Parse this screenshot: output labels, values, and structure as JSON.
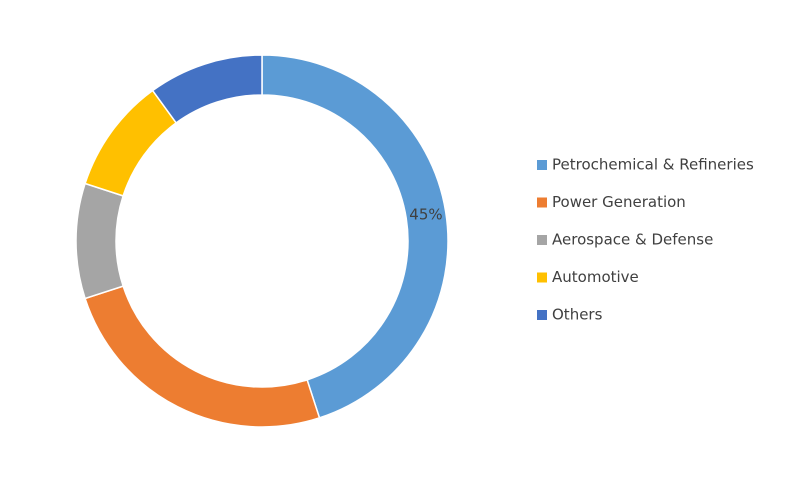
{
  "chart_data": {
    "type": "donut",
    "categories": [
      "Petrochemical & Refineries",
      "Power Generation",
      "Aerospace & Defense",
      "Automotive",
      "Others"
    ],
    "values": [
      45,
      25,
      10,
      10,
      10
    ],
    "value_labels": [
      "45%",
      null,
      null,
      null,
      null
    ],
    "colors": [
      "#5b9bd5",
      "#ed7d31",
      "#a5a5a5",
      "#ffc000",
      "#4472c4"
    ],
    "legend": "right"
  }
}
